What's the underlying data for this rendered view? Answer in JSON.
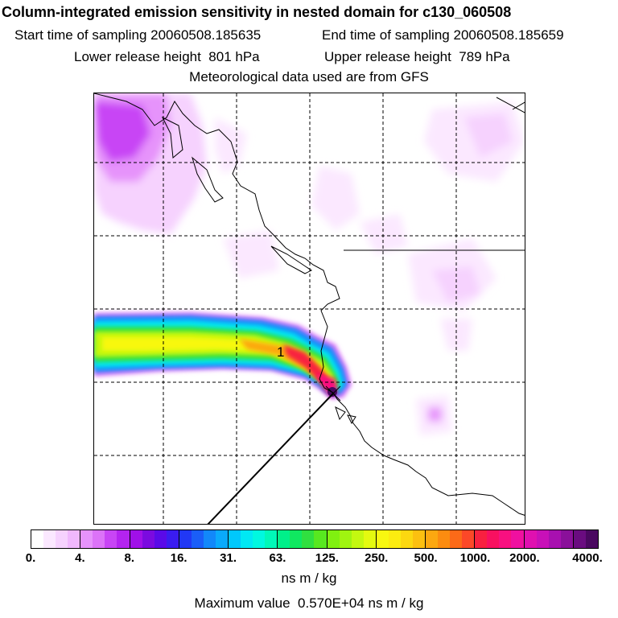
{
  "chart_data": {
    "type": "heatmap",
    "title": "Column-integrated emission sensitivity in nested domain for c130_060508",
    "start_label": "Start time of sampling",
    "start_value": "20060508.185635",
    "end_label": "End time of sampling",
    "end_value": "20060508.185659",
    "lower_label": "Lower release height",
    "lower_value": "801",
    "upper_label": "Upper release height",
    "upper_value": "789",
    "height_unit": "hPa",
    "met_text": "Meteorological data used are from GFS",
    "annotation": "1",
    "colorbar": {
      "tick_labels": [
        "0.",
        "4.",
        "8.",
        "16.",
        "31.",
        "63.",
        "125.",
        "250.",
        "500.",
        "1000.",
        "2000.",
        "4000."
      ],
      "colors": [
        "#ffffff",
        "#fbe8ff",
        "#f6d2fe",
        "#f0b8fd",
        "#e693fb",
        "#dc73f8",
        "#c845f5",
        "#b424f0",
        "#a010e8",
        "#7b0ae0",
        "#5a0ae8",
        "#3a1cf0",
        "#2138f5",
        "#1a5ef8",
        "#1288fa",
        "#0aaafc",
        "#00c8fc",
        "#00e8f4",
        "#00f8e0",
        "#00f8b8",
        "#00f08a",
        "#10e860",
        "#30e040",
        "#58e820",
        "#80f010",
        "#a0f410",
        "#c4f810",
        "#e4fa10",
        "#f8f810",
        "#fcec10",
        "#fcd810",
        "#fcc010",
        "#fca810",
        "#fc8c10",
        "#fc6a18",
        "#fc4828",
        "#f82040",
        "#f81060",
        "#f81080",
        "#f010a0",
        "#e010b0",
        "#c810b8",
        "#a810b0",
        "#8a109a",
        "#6a0c80",
        "#4a0860"
      ],
      "units": "ns m / kg"
    },
    "max_label": "Maximum value",
    "max_value": "0.570E+04",
    "max_units": "ns m / kg"
  }
}
